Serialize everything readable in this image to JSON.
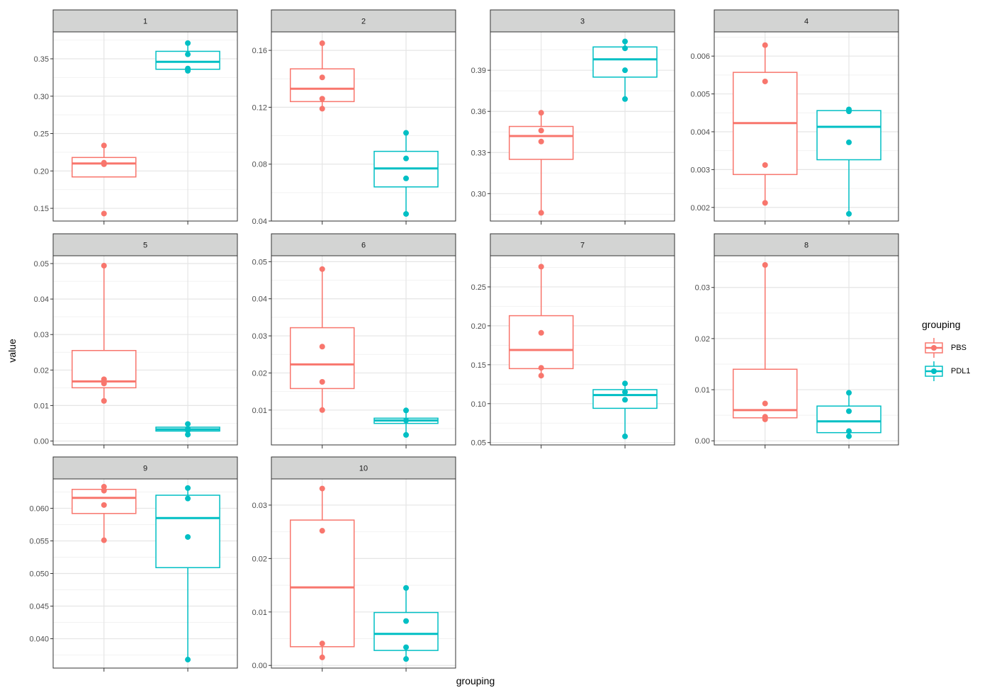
{
  "colors": {
    "PBS": "#F8766D",
    "PDL1": "#00BFC4",
    "strip_fill": "#D3D4D3",
    "grid_major": "#E5E5E5",
    "grid_minor": "#F2F2F2",
    "panel_border": "#333333"
  },
  "chart_data": {
    "type": "box",
    "xlabel": "grouping",
    "ylabel": "value",
    "legend": {
      "title": "grouping",
      "position": "right",
      "entries": [
        "PBS",
        "PDL1"
      ]
    },
    "grid": true,
    "x_tick_labels_shown": false,
    "panels": [
      {
        "label": "1",
        "ylim": [
          0.133,
          0.386
        ],
        "yticks": [
          0.15,
          0.2,
          0.25,
          0.3,
          0.35
        ],
        "ytick_labels": [
          "0.15",
          "0.20",
          "0.25",
          "0.30",
          "0.35"
        ],
        "groups": [
          {
            "name": "PBS",
            "q1": 0.192,
            "median": 0.21,
            "q3": 0.218,
            "whisker_low": 0.192,
            "whisker_high": 0.234,
            "points": [
              0.234,
              0.211,
              0.209,
              0.143
            ]
          },
          {
            "name": "PDL1",
            "q1": 0.336,
            "median": 0.346,
            "q3": 0.36,
            "whisker_low": 0.336,
            "whisker_high": 0.371,
            "points": [
              0.371,
              0.356,
              0.337,
              0.334
            ]
          }
        ]
      },
      {
        "label": "2",
        "ylim": [
          0.04,
          0.173
        ],
        "yticks": [
          0.04,
          0.08,
          0.12,
          0.16
        ],
        "ytick_labels": [
          "0.04",
          "0.08",
          "0.12",
          "0.16"
        ],
        "groups": [
          {
            "name": "PBS",
            "q1": 0.124,
            "median": 0.133,
            "q3": 0.147,
            "whisker_low": 0.119,
            "whisker_high": 0.165,
            "points": [
              0.165,
              0.141,
              0.126,
              0.119
            ]
          },
          {
            "name": "PDL1",
            "q1": 0.064,
            "median": 0.077,
            "q3": 0.089,
            "whisker_low": 0.045,
            "whisker_high": 0.102,
            "points": [
              0.102,
              0.084,
              0.07,
              0.045
            ]
          }
        ]
      },
      {
        "label": "3",
        "ylim": [
          0.28,
          0.418
        ],
        "yticks": [
          0.3,
          0.33,
          0.36,
          0.39
        ],
        "ytick_labels": [
          "0.30",
          "0.33",
          "0.36",
          "0.39"
        ],
        "groups": [
          {
            "name": "PBS",
            "q1": 0.325,
            "median": 0.342,
            "q3": 0.349,
            "whisker_low": 0.286,
            "whisker_high": 0.359,
            "points": [
              0.359,
              0.346,
              0.338,
              0.286
            ]
          },
          {
            "name": "PDL1",
            "q1": 0.385,
            "median": 0.398,
            "q3": 0.407,
            "whisker_low": 0.369,
            "whisker_high": 0.411,
            "points": [
              0.411,
              0.406,
              0.39,
              0.369
            ]
          }
        ]
      },
      {
        "label": "4",
        "ylim": [
          0.00164,
          0.00664
        ],
        "yticks": [
          0.002,
          0.003,
          0.004,
          0.005,
          0.006
        ],
        "ytick_labels": [
          "0.002",
          "0.003",
          "0.004",
          "0.005",
          "0.006"
        ],
        "groups": [
          {
            "name": "PBS",
            "q1": 0.00287,
            "median": 0.00423,
            "q3": 0.00557,
            "whisker_low": 0.00212,
            "whisker_high": 0.00629,
            "points": [
              0.00629,
              0.00533,
              0.00312,
              0.00212
            ]
          },
          {
            "name": "PDL1",
            "q1": 0.00326,
            "median": 0.00413,
            "q3": 0.00456,
            "whisker_low": 0.00183,
            "whisker_high": 0.00459,
            "points": [
              0.00459,
              0.00454,
              0.00372,
              0.00183
            ]
          }
        ]
      },
      {
        "label": "5",
        "ylim": [
          -0.0011,
          0.0522
        ],
        "yticks": [
          0,
          0.01,
          0.02,
          0.03,
          0.04,
          0.05
        ],
        "ytick_labels": [
          "0.00",
          "0.01",
          "0.02",
          "0.03",
          "0.04",
          "0.05"
        ],
        "groups": [
          {
            "name": "PBS",
            "q1": 0.015,
            "median": 0.0168,
            "q3": 0.0255,
            "whisker_low": 0.0113,
            "whisker_high": 0.0494,
            "points": [
              0.0494,
              0.0174,
              0.0162,
              0.0113
            ]
          },
          {
            "name": "PDL1",
            "q1": 0.0028,
            "median": 0.0033,
            "q3": 0.0039,
            "whisker_low": 0.0018,
            "whisker_high": 0.0048,
            "points": [
              0.0048,
              0.0034,
              0.003,
              0.0018
            ]
          }
        ]
      },
      {
        "label": "6",
        "ylim": [
          0.0006,
          0.0516
        ],
        "yticks": [
          0.01,
          0.02,
          0.03,
          0.04,
          0.05
        ],
        "ytick_labels": [
          "0.01",
          "0.02",
          "0.03",
          "0.04",
          "0.05"
        ],
        "groups": [
          {
            "name": "PBS",
            "q1": 0.0158,
            "median": 0.0223,
            "q3": 0.0322,
            "whisker_low": 0.01,
            "whisker_high": 0.048,
            "points": [
              0.048,
              0.0271,
              0.0176,
              0.01
            ]
          },
          {
            "name": "PDL1",
            "q1": 0.0064,
            "median": 0.0072,
            "q3": 0.0078,
            "whisker_low": 0.0033,
            "whisker_high": 0.0099,
            "points": [
              0.0099,
              0.0072,
              0.0033
            ]
          }
        ]
      },
      {
        "label": "7",
        "ylim": [
          0.047,
          0.29
        ],
        "yticks": [
          0.05,
          0.1,
          0.15,
          0.2,
          0.25
        ],
        "ytick_labels": [
          "0.05",
          "0.10",
          "0.15",
          "0.20",
          "0.25"
        ],
        "groups": [
          {
            "name": "PBS",
            "q1": 0.145,
            "median": 0.169,
            "q3": 0.213,
            "whisker_low": 0.136,
            "whisker_high": 0.276,
            "points": [
              0.276,
              0.191,
              0.146,
              0.136
            ]
          },
          {
            "name": "PDL1",
            "q1": 0.094,
            "median": 0.111,
            "q3": 0.118,
            "whisker_low": 0.058,
            "whisker_high": 0.126,
            "points": [
              0.126,
              0.115,
              0.105,
              0.058
            ]
          }
        ]
      },
      {
        "label": "8",
        "ylim": [
          -0.0008,
          0.0362
        ],
        "yticks": [
          0,
          0.01,
          0.02,
          0.03
        ],
        "ytick_labels": [
          "0.00",
          "0.01",
          "0.02",
          "0.03"
        ],
        "groups": [
          {
            "name": "PBS",
            "q1": 0.0045,
            "median": 0.006,
            "q3": 0.014,
            "whisker_low": 0.0042,
            "whisker_high": 0.0344,
            "points": [
              0.0344,
              0.0073,
              0.0047,
              0.0042
            ]
          },
          {
            "name": "PDL1",
            "q1": 0.0016,
            "median": 0.0038,
            "q3": 0.0068,
            "whisker_low": 0.0009,
            "whisker_high": 0.0094,
            "points": [
              0.0094,
              0.0058,
              0.0019,
              0.0009
            ]
          }
        ]
      },
      {
        "label": "9",
        "ylim": [
          0.0355,
          0.0645
        ],
        "yticks": [
          0.04,
          0.045,
          0.05,
          0.055,
          0.06
        ],
        "ytick_labels": [
          "0.040",
          "0.045",
          "0.050",
          "0.055",
          "0.060"
        ],
        "groups": [
          {
            "name": "PBS",
            "q1": 0.0592,
            "median": 0.0616,
            "q3": 0.0629,
            "whisker_low": 0.0551,
            "whisker_high": 0.0633,
            "points": [
              0.0633,
              0.0627,
              0.0605,
              0.0551
            ]
          },
          {
            "name": "PDL1",
            "q1": 0.0509,
            "median": 0.0585,
            "q3": 0.062,
            "whisker_low": 0.0368,
            "whisker_high": 0.0631,
            "points": [
              0.0631,
              0.0615,
              0.0556,
              0.0368
            ]
          }
        ]
      },
      {
        "label": "10",
        "ylim": [
          -0.0005,
          0.0349
        ],
        "yticks": [
          0,
          0.01,
          0.02,
          0.03
        ],
        "ytick_labels": [
          "0.00",
          "0.01",
          "0.02",
          "0.03"
        ],
        "groups": [
          {
            "name": "PBS",
            "q1": 0.0035,
            "median": 0.0146,
            "q3": 0.0272,
            "whisker_low": 0.0015,
            "whisker_high": 0.0331,
            "points": [
              0.0331,
              0.0252,
              0.0041,
              0.0015
            ]
          },
          {
            "name": "PDL1",
            "q1": 0.0028,
            "median": 0.0059,
            "q3": 0.0099,
            "whisker_low": 0.0012,
            "whisker_high": 0.0145,
            "points": [
              0.0145,
              0.0083,
              0.0034,
              0.0012
            ]
          }
        ]
      }
    ]
  }
}
